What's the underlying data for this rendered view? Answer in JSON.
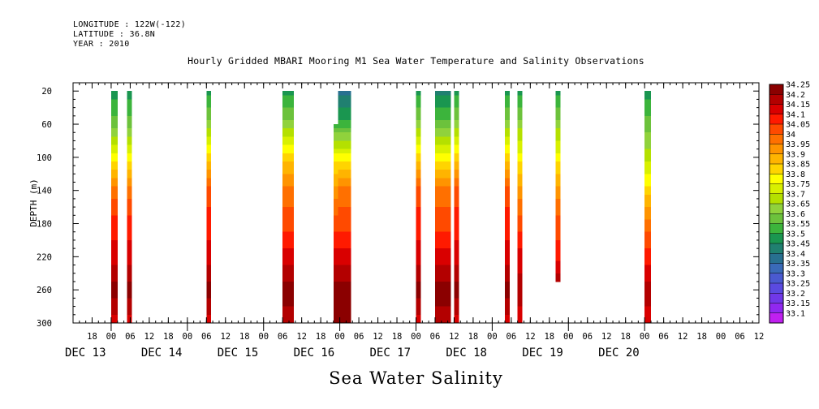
{
  "header": {
    "longitude": "LONGITUDE : 122W(-122)",
    "latitude": "LATITUDE : 36.8N",
    "year": "YEAR : 2010"
  },
  "title": "Hourly Gridded MBARI Mooring M1 Sea Water Temperature and Salinity Observations",
  "bottom_title": "Sea Water Salinity",
  "chart_data": {
    "type": "heatmap",
    "title": "Hourly Gridded MBARI Mooring M1 Sea Water Temperature and Salinity Observations",
    "xlabel": "",
    "ylabel": "DEPTH (m)",
    "variable": "Sea Water Salinity",
    "x_axis": {
      "unit": "hours since Dec 12 2010 12:00",
      "range": [
        0,
        204
      ],
      "hour_ticks": [
        {
          "t": 6,
          "label": "18"
        },
        {
          "t": 12,
          "label": "00"
        },
        {
          "t": 18,
          "label": "06"
        },
        {
          "t": 24,
          "label": "12"
        },
        {
          "t": 30,
          "label": "18"
        },
        {
          "t": 36,
          "label": "00"
        },
        {
          "t": 42,
          "label": "06"
        },
        {
          "t": 48,
          "label": "12"
        },
        {
          "t": 54,
          "label": "18"
        },
        {
          "t": 60,
          "label": "00"
        },
        {
          "t": 66,
          "label": "06"
        },
        {
          "t": 72,
          "label": "12"
        },
        {
          "t": 78,
          "label": "18"
        },
        {
          "t": 84,
          "label": "00"
        },
        {
          "t": 90,
          "label": "06"
        },
        {
          "t": 96,
          "label": "12"
        },
        {
          "t": 102,
          "label": "18"
        },
        {
          "t": 108,
          "label": "00"
        },
        {
          "t": 114,
          "label": "06"
        },
        {
          "t": 120,
          "label": "12"
        },
        {
          "t": 126,
          "label": "18"
        },
        {
          "t": 132,
          "label": "00"
        },
        {
          "t": 138,
          "label": "06"
        },
        {
          "t": 144,
          "label": "12"
        },
        {
          "t": 150,
          "label": "18"
        },
        {
          "t": 156,
          "label": "00"
        },
        {
          "t": 162,
          "label": "06"
        },
        {
          "t": 168,
          "label": "12"
        },
        {
          "t": 174,
          "label": "18"
        },
        {
          "t": 180,
          "label": "00"
        },
        {
          "t": 186,
          "label": "06"
        },
        {
          "t": 192,
          "label": "12"
        },
        {
          "t": 198,
          "label": "18"
        },
        {
          "t": 204,
          "label": "00"
        },
        {
          "t": 210,
          "label": "06"
        },
        {
          "t": 216,
          "label": "12"
        }
      ],
      "day_labels": [
        {
          "t": 12,
          "label": "DEC 13"
        },
        {
          "t": 36,
          "label": "DEC 14"
        },
        {
          "t": 60,
          "label": "DEC 15"
        },
        {
          "t": 84,
          "label": "DEC 16"
        },
        {
          "t": 108,
          "label": "DEC 17"
        },
        {
          "t": 132,
          "label": "DEC 18"
        },
        {
          "t": 156,
          "label": "DEC 19"
        },
        {
          "t": 180,
          "label": "DEC 20"
        }
      ]
    },
    "y_axis": {
      "label": "DEPTH (m)",
      "range": [
        10,
        300
      ],
      "inverted": true,
      "ticks": [
        20,
        60,
        100,
        140,
        180,
        220,
        260,
        300
      ]
    },
    "colorbar": {
      "levels": [
        34.25,
        34.2,
        34.15,
        34.1,
        34.05,
        34,
        33.95,
        33.9,
        33.85,
        33.8,
        33.75,
        33.7,
        33.65,
        33.6,
        33.55,
        33.5,
        33.45,
        33.4,
        33.35,
        33.3,
        33.25,
        33.2,
        33.15,
        33.1
      ],
      "colors": [
        "#8b0000",
        "#b30000",
        "#d90000",
        "#ff1a00",
        "#ff4a00",
        "#ff7000",
        "#ff9400",
        "#ffb400",
        "#ffd400",
        "#ffff00",
        "#d8f000",
        "#b4e000",
        "#90d23c",
        "#6cc23c",
        "#3cb43c",
        "#1a9650",
        "#208070",
        "#287090",
        "#3a6ab8",
        "#4a5ad0",
        "#5a4ae0",
        "#7038e8",
        "#9028f0",
        "#c020f0"
      ]
    },
    "columns": [
      {
        "start": 12,
        "end": 14,
        "min_depth": 20,
        "max_depth": 300,
        "profile": [
          [
            20,
            33.5
          ],
          [
            60,
            33.6
          ],
          [
            100,
            33.8
          ],
          [
            140,
            34.0
          ],
          [
            180,
            34.1
          ],
          [
            220,
            34.15
          ],
          [
            260,
            34.25
          ],
          [
            300,
            34.15
          ]
        ]
      },
      {
        "start": 17,
        "end": 18.5,
        "min_depth": 20,
        "max_depth": 300,
        "profile": [
          [
            20,
            33.5
          ],
          [
            60,
            33.6
          ],
          [
            100,
            33.8
          ],
          [
            140,
            34.0
          ],
          [
            180,
            34.1
          ],
          [
            220,
            34.15
          ],
          [
            260,
            34.25
          ],
          [
            300,
            34.15
          ]
        ]
      },
      {
        "start": 42,
        "end": 43.5,
        "min_depth": 20,
        "max_depth": 300,
        "profile": [
          [
            20,
            33.5
          ],
          [
            60,
            33.65
          ],
          [
            100,
            33.85
          ],
          [
            140,
            34.05
          ],
          [
            180,
            34.1
          ],
          [
            220,
            34.15
          ],
          [
            260,
            34.25
          ],
          [
            300,
            34.15
          ]
        ]
      },
      {
        "start": 66,
        "end": 69.5,
        "min_depth": 20,
        "max_depth": 300,
        "profile": [
          [
            20,
            33.5
          ],
          [
            60,
            33.65
          ],
          [
            100,
            33.85
          ],
          [
            140,
            34.0
          ],
          [
            180,
            34.05
          ],
          [
            220,
            34.15
          ],
          [
            260,
            34.25
          ],
          [
            300,
            34.2
          ]
        ]
      },
      {
        "start": 82,
        "end": 83.5,
        "min_depth": 60,
        "max_depth": 300,
        "profile": [
          [
            60,
            33.55
          ],
          [
            100,
            33.8
          ],
          [
            140,
            33.95
          ],
          [
            180,
            34.05
          ],
          [
            220,
            34.15
          ],
          [
            260,
            34.25
          ],
          [
            300,
            34.25
          ]
        ]
      },
      {
        "start": 83.5,
        "end": 87.5,
        "min_depth": 20,
        "max_depth": 300,
        "profile": [
          [
            20,
            33.4
          ],
          [
            60,
            33.55
          ],
          [
            100,
            33.8
          ],
          [
            140,
            34.0
          ],
          [
            180,
            34.05
          ],
          [
            220,
            34.15
          ],
          [
            260,
            34.25
          ],
          [
            300,
            34.25
          ]
        ]
      },
      {
        "start": 108,
        "end": 109.5,
        "min_depth": 20,
        "max_depth": 300,
        "profile": [
          [
            20,
            33.5
          ],
          [
            60,
            33.65
          ],
          [
            100,
            33.85
          ],
          [
            140,
            34.05
          ],
          [
            180,
            34.1
          ],
          [
            220,
            34.15
          ],
          [
            260,
            34.25
          ],
          [
            300,
            34.15
          ]
        ]
      },
      {
        "start": 114,
        "end": 119,
        "min_depth": 20,
        "max_depth": 300,
        "profile": [
          [
            20,
            33.45
          ],
          [
            60,
            33.6
          ],
          [
            100,
            33.8
          ],
          [
            140,
            34.0
          ],
          [
            180,
            34.05
          ],
          [
            220,
            34.15
          ],
          [
            260,
            34.25
          ],
          [
            300,
            34.2
          ]
        ]
      },
      {
        "start": 120,
        "end": 121.5,
        "min_depth": 20,
        "max_depth": 300,
        "profile": [
          [
            20,
            33.5
          ],
          [
            60,
            33.65
          ],
          [
            100,
            33.85
          ],
          [
            140,
            34.05
          ],
          [
            180,
            34.1
          ],
          [
            220,
            34.15
          ],
          [
            260,
            34.25
          ],
          [
            300,
            34.15
          ]
        ]
      },
      {
        "start": 136,
        "end": 137.5,
        "min_depth": 20,
        "max_depth": 300,
        "profile": [
          [
            20,
            33.5
          ],
          [
            60,
            33.65
          ],
          [
            100,
            33.85
          ],
          [
            140,
            34.05
          ],
          [
            180,
            34.1
          ],
          [
            220,
            34.15
          ],
          [
            260,
            34.25
          ],
          [
            300,
            34.15
          ]
        ]
      },
      {
        "start": 140,
        "end": 141.5,
        "min_depth": 20,
        "max_depth": 300,
        "profile": [
          [
            20,
            33.5
          ],
          [
            60,
            33.65
          ],
          [
            100,
            33.8
          ],
          [
            140,
            33.95
          ],
          [
            180,
            34.05
          ],
          [
            220,
            34.15
          ],
          [
            260,
            34.2
          ],
          [
            300,
            34.15
          ]
        ]
      },
      {
        "start": 152,
        "end": 153.5,
        "min_depth": 20,
        "max_depth": 250,
        "profile": [
          [
            20,
            33.5
          ],
          [
            60,
            33.65
          ],
          [
            100,
            33.8
          ],
          [
            140,
            33.95
          ],
          [
            180,
            34.05
          ],
          [
            220,
            34.1
          ],
          [
            250,
            34.2
          ]
        ]
      },
      {
        "start": 180,
        "end": 182,
        "min_depth": 20,
        "max_depth": 300,
        "profile": [
          [
            20,
            33.5
          ],
          [
            60,
            33.6
          ],
          [
            100,
            33.7
          ],
          [
            140,
            33.85
          ],
          [
            180,
            34.0
          ],
          [
            220,
            34.1
          ],
          [
            260,
            34.2
          ],
          [
            300,
            34.15
          ]
        ]
      }
    ]
  }
}
